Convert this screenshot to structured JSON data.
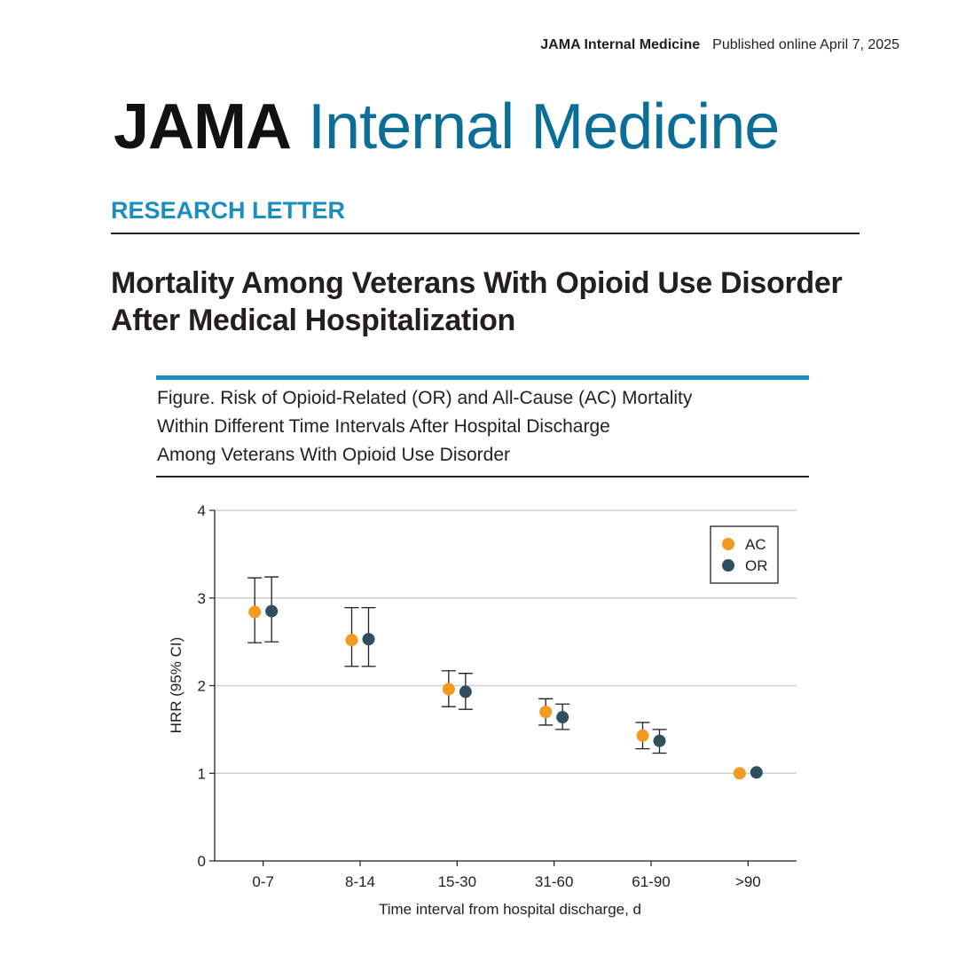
{
  "header": {
    "journal": "JAMA Internal Medicine",
    "published": "Published online April 7, 2025"
  },
  "masthead": {
    "part1": "JAMA",
    "part2": "Internal Medicine"
  },
  "section_label": "RESEARCH LETTER",
  "article_title": "Mortality Among Veterans With Opioid Use Disorder After Medical Hospitalization",
  "figure_caption_lines": [
    "Figure. Risk of Opioid-Related (OR) and All-Cause (AC) Mortality",
    "Within Different Time Intervals After Hospital Discharge",
    "Among Veterans With Opioid Use Disorder"
  ],
  "colors": {
    "accent_blue": "#1a8fbf",
    "masthead_blue": "#0b6e99",
    "ac": "#f39a21",
    "or": "#2f4f5c"
  },
  "chart_data": {
    "type": "scatter",
    "categories": [
      "0-7",
      "8-14",
      "15-30",
      "31-60",
      "61-90",
      ">90"
    ],
    "xlabel": "Time interval from hospital discharge, d",
    "ylabel": "HRR (95% CI)",
    "ylim": [
      0,
      4
    ],
    "yticks": [
      0,
      1,
      2,
      3,
      4
    ],
    "grid": true,
    "legend_position": "top-right",
    "series": [
      {
        "name": "AC",
        "color": "#f39a21",
        "values": [
          2.84,
          2.52,
          1.96,
          1.7,
          1.43,
          1.0
        ],
        "ci_low": [
          2.49,
          2.22,
          1.76,
          1.55,
          1.28,
          null
        ],
        "ci_high": [
          3.23,
          2.89,
          2.17,
          1.85,
          1.58,
          null
        ]
      },
      {
        "name": "OR",
        "color": "#2f4f5c",
        "values": [
          2.85,
          2.53,
          1.93,
          1.64,
          1.37,
          1.01
        ],
        "ci_low": [
          2.5,
          2.22,
          1.73,
          1.5,
          1.23,
          null
        ],
        "ci_high": [
          3.24,
          2.89,
          2.14,
          1.79,
          1.5,
          null
        ]
      }
    ]
  }
}
